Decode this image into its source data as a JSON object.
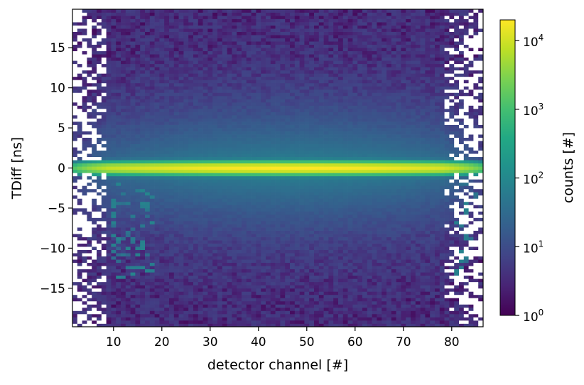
{
  "chart_data": {
    "type": "heatmap",
    "title": "",
    "xlabel": "detector channel [#]",
    "ylabel": "TDiff [ns]",
    "colorbar_label": "counts [#]",
    "colormap": "viridis",
    "colorbar_scale": "log",
    "xlim": [
      1.5,
      86.5
    ],
    "ylim": [
      -19.8,
      19.8
    ],
    "x_ticks": [
      10,
      20,
      30,
      40,
      50,
      60,
      70,
      80
    ],
    "x_tick_labels": [
      "10",
      "20",
      "30",
      "40",
      "50",
      "60",
      "70",
      "80"
    ],
    "y_ticks": [
      15,
      10,
      5,
      0,
      -5,
      -10,
      -15
    ],
    "y_tick_labels": [
      "15",
      "10",
      "5",
      "0",
      "−5",
      "−10",
      "−15"
    ],
    "colorbar_ticks": [
      1,
      10,
      100,
      1000,
      10000
    ],
    "colorbar_tick_labels": [
      {
        "base": "10",
        "exp": "0"
      },
      {
        "base": "10",
        "exp": "1"
      },
      {
        "base": "10",
        "exp": "2"
      },
      {
        "base": "10",
        "exp": "3"
      },
      {
        "base": "10",
        "exp": "4"
      }
    ],
    "colorbar_range": [
      1,
      20000
    ],
    "channels": [
      2,
      86
    ],
    "tdiff_bin_width_ns": 0.4,
    "peak": {
      "tdiff_ns": 0,
      "max_counts": 20000,
      "peak_channel_range": [
        40,
        55
      ]
    },
    "background_counts_per_bin": 3,
    "grid": false,
    "legend": "none"
  }
}
